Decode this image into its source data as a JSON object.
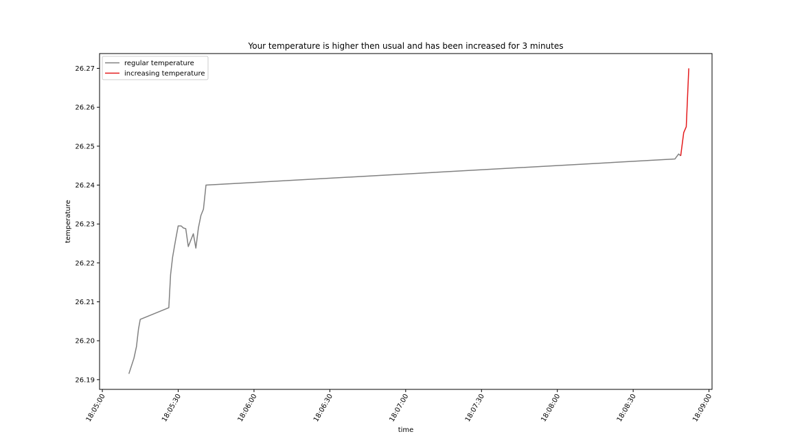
{
  "chart_data": {
    "type": "line",
    "title": "Your temperature is higher then usual and has been increased for 3 minutes",
    "xlabel": "time",
    "ylabel": "temperature",
    "x_ticks": [
      "18:05:00",
      "18:05:30",
      "18:06:00",
      "18:06:30",
      "18:07:00",
      "18:07:30",
      "18:08:00",
      "18:08:30",
      "18:09:00"
    ],
    "x_tick_seconds": [
      0,
      30,
      60,
      90,
      120,
      150,
      180,
      210,
      240
    ],
    "y_ticks": [
      "26.19",
      "26.20",
      "26.21",
      "26.22",
      "26.23",
      "26.24",
      "26.25",
      "26.26",
      "26.27"
    ],
    "y_tick_values": [
      26.19,
      26.2,
      26.21,
      26.22,
      26.23,
      26.24,
      26.25,
      26.26,
      26.27
    ],
    "legend_position": "top-left",
    "series": [
      {
        "name": "regular temperature",
        "color": "#808080",
        "points": [
          [
            "18:05:10.5",
            26.1915
          ],
          [
            "18:05:12.5",
            26.1955
          ],
          [
            "18:05:13.5",
            26.1985
          ],
          [
            "18:05:14.3",
            26.203
          ],
          [
            "18:05:15",
            26.2055
          ],
          [
            "18:05:26.3",
            26.2085
          ],
          [
            "18:05:27",
            26.217
          ],
          [
            "18:05:27.8",
            26.2215
          ],
          [
            "18:05:29",
            26.226
          ],
          [
            "18:05:30",
            26.2295
          ],
          [
            "18:05:31.2",
            26.2295
          ],
          [
            "18:05:32",
            26.229
          ],
          [
            "18:05:33",
            26.2288
          ],
          [
            "18:05:34",
            26.2242
          ],
          [
            "18:05:36",
            26.2275
          ],
          [
            "18:05:37",
            26.2238
          ],
          [
            "18:05:38",
            26.229
          ],
          [
            "18:05:39",
            26.2322
          ],
          [
            "18:05:40",
            26.2338
          ],
          [
            "18:05:41",
            26.24
          ],
          [
            "18:08:46.5",
            26.2467
          ],
          [
            "18:08:48",
            26.248
          ],
          [
            "18:08:48.8",
            26.2475
          ]
        ]
      },
      {
        "name": "increasing temperature",
        "color": "#e41a1c",
        "points": [
          [
            "18:08:48.8",
            26.2475
          ],
          [
            "18:08:50",
            26.2535
          ],
          [
            "18:08:51",
            26.255
          ],
          [
            "18:08:52",
            26.27
          ]
        ]
      }
    ],
    "xlim": [
      "18:04:58.9",
      "18:09:01.2"
    ],
    "ylim": [
      26.1875,
      26.2738
    ],
    "grid": false
  }
}
